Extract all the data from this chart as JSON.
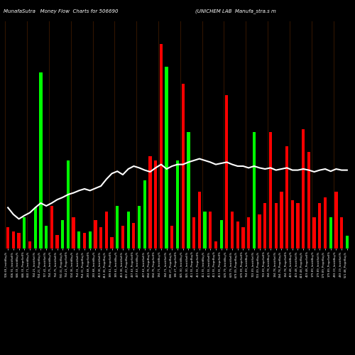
{
  "title_left": "MunafaSutra   Money Flow  Charts for 506690",
  "title_right": "(UNICHEM LAB  Manufa_stra.s m",
  "background_color": "#000000",
  "bar_colors": [
    "red",
    "red",
    "red",
    "green",
    "red",
    "green",
    "green",
    "green",
    "red",
    "red",
    "green",
    "green",
    "red",
    "green",
    "red",
    "green",
    "red",
    "red",
    "red",
    "red",
    "green",
    "red",
    "green",
    "red",
    "green",
    "green",
    "red",
    "red",
    "red",
    "green",
    "red",
    "green",
    "red",
    "green",
    "red",
    "red",
    "green",
    "red",
    "red",
    "green",
    "red",
    "red",
    "red",
    "red",
    "red",
    "green",
    "red",
    "red",
    "red",
    "red",
    "red",
    "red",
    "red",
    "red",
    "red",
    "red",
    "red",
    "red",
    "red",
    "green",
    "red",
    "red",
    "green"
  ],
  "bar_heights": [
    0.38,
    0.3,
    0.28,
    0.55,
    0.12,
    0.72,
    3.1,
    0.4,
    0.75,
    0.24,
    0.5,
    1.55,
    0.55,
    0.3,
    0.27,
    0.3,
    0.5,
    0.38,
    0.65,
    0.2,
    0.75,
    0.4,
    0.65,
    0.45,
    0.75,
    1.2,
    1.62,
    1.55,
    3.6,
    3.2,
    0.4,
    1.55,
    2.9,
    2.05,
    0.55,
    1.0,
    0.65,
    0.65,
    0.12,
    0.5,
    2.7,
    0.65,
    0.47,
    0.38,
    0.55,
    2.05,
    0.6,
    0.8,
    2.05,
    0.8,
    1.0,
    1.8,
    0.85,
    0.8,
    2.1,
    1.7,
    0.55,
    0.8,
    0.9,
    0.55,
    1.0,
    0.55,
    0.22
  ],
  "line_values": [
    0.72,
    0.6,
    0.52,
    0.58,
    0.63,
    0.72,
    0.8,
    0.75,
    0.8,
    0.86,
    0.9,
    0.95,
    0.98,
    1.02,
    1.05,
    1.02,
    1.06,
    1.1,
    1.22,
    1.32,
    1.36,
    1.3,
    1.4,
    1.45,
    1.42,
    1.38,
    1.35,
    1.42,
    1.48,
    1.4,
    1.45,
    1.48,
    1.48,
    1.52,
    1.55,
    1.58,
    1.55,
    1.52,
    1.48,
    1.5,
    1.52,
    1.48,
    1.45,
    1.45,
    1.42,
    1.45,
    1.42,
    1.4,
    1.42,
    1.38,
    1.4,
    1.42,
    1.38,
    1.38,
    1.4,
    1.38,
    1.35,
    1.38,
    1.4,
    1.36,
    1.4,
    1.38,
    1.38
  ],
  "x_labels": [
    "506.69_InstitBuy%",
    "606.91_InstitSell%",
    "646.33_InstitBuy%",
    "646.33_ProprSell%",
    "660.71_InstitBuy%",
    "704.21_InstitSell%",
    "704.21_ProprBuy%",
    "707.41_InstitSell%",
    "734.75_InstitBuy%",
    "734.75_InstitSell%",
    "730.31_ProprBuy%",
    "734.21_ProprSell%",
    "504.36_InstitBuy%",
    "754.31_InstitSell%",
    "754.31_ProprBuy%",
    "293.68_ProprSell%",
    "293.68_InstitBuy%",
    "413.36_InstitSell%",
    "413.36_ProprBuy%",
    "399.61_ProprSell%",
    "399.61_InstitBuy%",
    "413.36_InstitSell%",
    "431.20_ProprBuy%",
    "437.63_ProprSell%",
    "437.63_InstitBuy%",
    "437.63_InstitSell%",
    "694.76_ProprBuy%",
    "694.76_ProprSell%",
    "194.71_InstitBuy%",
    "194.71_InstitSell%",
    "196.27_ProprBuy%",
    "196.27_ProprSell%",
    "825.30_InstitBuy%",
    "825.30_InstitSell%",
    "411.55_ProprBuy%",
    "411.55_ProprSell%",
    "411.55_InstitBuy%",
    "411.55_InstitSell%",
    "411.55_ProprBuy%",
    "411.55_ProprSell%",
    "629.79_InstitBuy%",
    "629.79_InstitSell%",
    "679.09_ProprBuy%",
    "679.09_ProprSell%",
    "704.09_InstitBuy%",
    "703.09_InstitSell%",
    "703.09_ProprBuy%",
    "703.09_ProprSell%",
    "194.78_InstitBuy%",
    "194.78_InstitSell%",
    "194.78_ProprBuy%",
    "194.78_ProprSell%",
    "419.48_InstitBuy%",
    "419.48_InstitSell%",
    "419.48_ProprBuy%",
    "419.48_ProprSell%",
    "179.89_InstitBuy%",
    "179.89_InstitSell%",
    "179.89_ProprBuy%",
    "179.89_ProprSell%",
    "493.19_InstitBuy%",
    "493.19_InstitSell%",
    "521.48_ProprBuy%"
  ],
  "line_color": "#ffffff",
  "bar_width": 0.55,
  "bright_green": "#00ff00",
  "bright_red": "#ff0000",
  "separator_color": "#3a1800",
  "figsize": [
    5.0,
    5.0
  ],
  "dpi": 100,
  "ylim_max": 4.0
}
